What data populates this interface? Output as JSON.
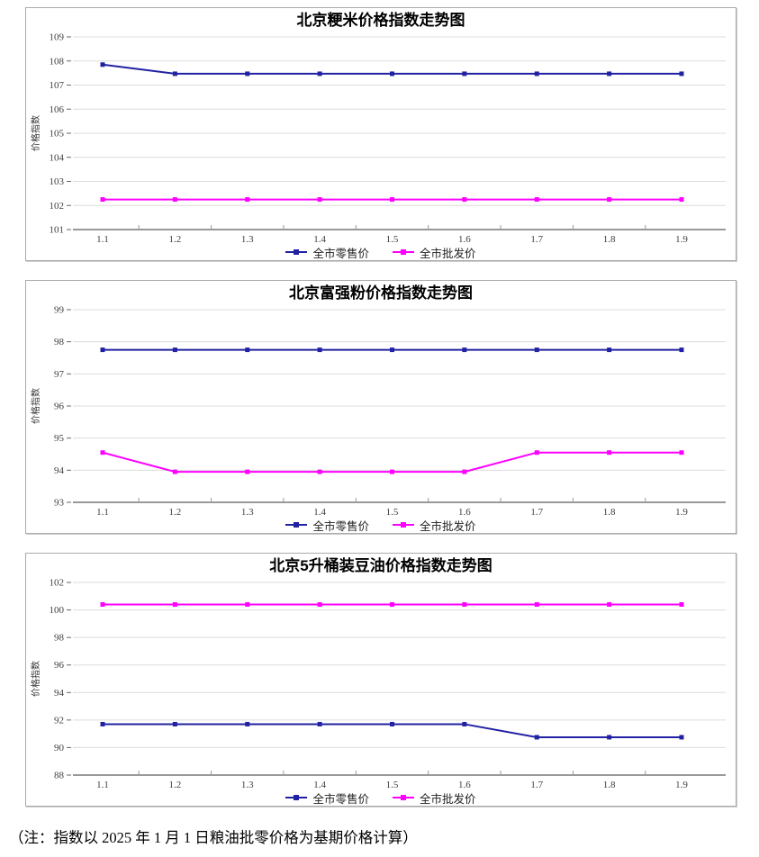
{
  "note": "（注：指数以 2025 年 1 月 1 日粮油批零价格为基期价格计算）",
  "chart_data": [
    {
      "type": "line",
      "title": "北京粳米价格指数走势图",
      "ylabel": "价格指数",
      "xlabel": "",
      "categories": [
        "1.1",
        "1.2",
        "1.3",
        "1.4",
        "1.5",
        "1.6",
        "1.7",
        "1.8",
        "1.9"
      ],
      "ylim": [
        101,
        109
      ],
      "ytick_step": 1,
      "grid": true,
      "legend_position": "bottom",
      "series": [
        {
          "name": "全市零售价",
          "color": "#2121a3",
          "values": [
            107.85,
            107.47,
            107.47,
            107.47,
            107.47,
            107.47,
            107.47,
            107.47,
            107.47
          ]
        },
        {
          "name": "全市批发价",
          "color": "#ff00ff",
          "values": [
            102.25,
            102.25,
            102.25,
            102.25,
            102.25,
            102.25,
            102.25,
            102.25,
            102.25
          ]
        }
      ]
    },
    {
      "type": "line",
      "title": "北京富强粉价格指数走势图",
      "ylabel": "价格指数",
      "xlabel": "",
      "categories": [
        "1.1",
        "1.2",
        "1.3",
        "1.4",
        "1.5",
        "1.6",
        "1.7",
        "1.8",
        "1.9"
      ],
      "ylim": [
        93,
        99
      ],
      "ytick_step": 1,
      "grid": true,
      "legend_position": "bottom",
      "series": [
        {
          "name": "全市零售价",
          "color": "#2121a3",
          "values": [
            97.75,
            97.75,
            97.75,
            97.75,
            97.75,
            97.75,
            97.75,
            97.75,
            97.75
          ]
        },
        {
          "name": "全市批发价",
          "color": "#ff00ff",
          "values": [
            94.55,
            93.95,
            93.95,
            93.95,
            93.95,
            93.95,
            94.55,
            94.55,
            94.55
          ]
        }
      ]
    },
    {
      "type": "line",
      "title": "北京5升桶装豆油价格指数走势图",
      "ylabel": "价格指数",
      "xlabel": "",
      "categories": [
        "1.1",
        "1.2",
        "1.3",
        "1.4",
        "1.5",
        "1.6",
        "1.7",
        "1.8",
        "1.9"
      ],
      "ylim": [
        88,
        102
      ],
      "ytick_step": 2,
      "grid": true,
      "legend_position": "bottom",
      "series": [
        {
          "name": "全市零售价",
          "color": "#2121a3",
          "values": [
            91.7,
            91.7,
            91.7,
            91.7,
            91.7,
            91.7,
            90.75,
            90.75,
            90.75
          ]
        },
        {
          "name": "全市批发价",
          "color": "#ff00ff",
          "values": [
            100.4,
            100.4,
            100.4,
            100.4,
            100.4,
            100.4,
            100.4,
            100.4,
            100.4
          ]
        }
      ]
    }
  ]
}
